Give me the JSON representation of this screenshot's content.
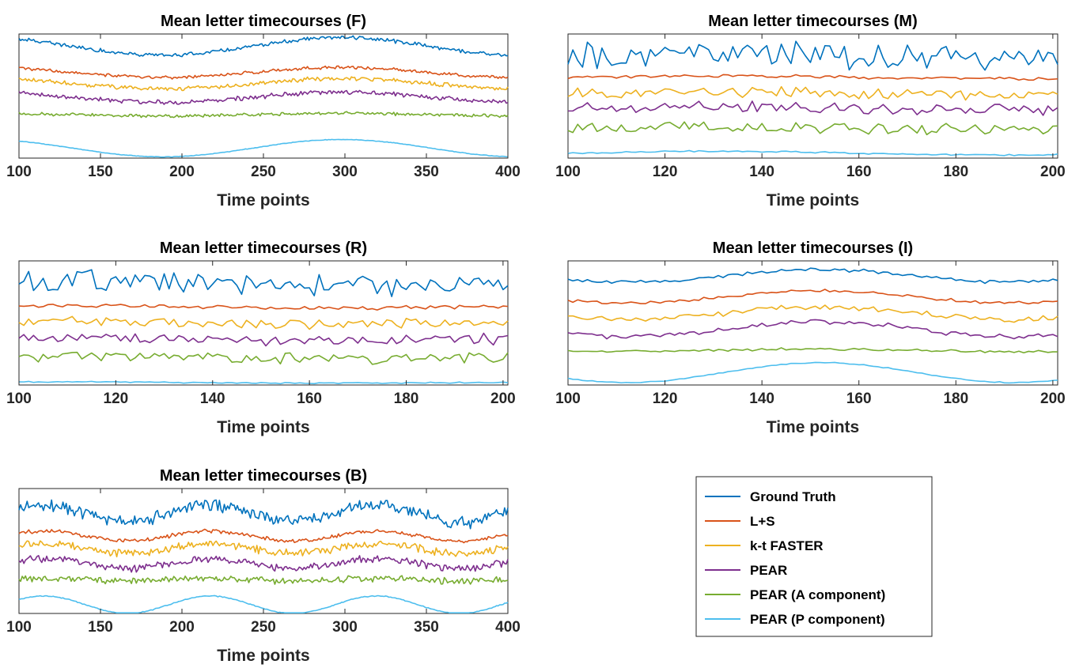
{
  "legend": {
    "entries": [
      "Ground Truth",
      "L+S",
      "k-t FASTER",
      "PEAR",
      "PEAR (A component)",
      "PEAR (P component)"
    ],
    "colors": [
      "#0072BD",
      "#D95319",
      "#EDB120",
      "#7E2F8E",
      "#77AC30",
      "#4DBEEE"
    ],
    "placement": "lower-right (standalone box)"
  },
  "chart_data": [
    {
      "type": "line",
      "title": "Mean letter timecourses (F)",
      "xlabel": "Time points",
      "ylabel": "",
      "xlim": [
        100,
        400
      ],
      "xticks": [
        100,
        150,
        200,
        250,
        300,
        350,
        400
      ],
      "ylim": [
        0,
        1
      ],
      "yticks_visible": false,
      "series": [
        {
          "name": "Ground Truth",
          "baseline": 0.9,
          "wave_amp": 0.07,
          "period": 220,
          "phase": 0.35,
          "noise": 0.012,
          "kind": "slow"
        },
        {
          "name": "L+S",
          "baseline": 0.69,
          "wave_amp": 0.04,
          "period": 220,
          "phase": 0.35,
          "noise": 0.01,
          "kind": "slow"
        },
        {
          "name": "k-t FASTER",
          "baseline": 0.6,
          "wave_amp": 0.04,
          "period": 220,
          "phase": 0.35,
          "noise": 0.014,
          "kind": "slow"
        },
        {
          "name": "PEAR",
          "baseline": 0.49,
          "wave_amp": 0.04,
          "period": 220,
          "phase": 0.35,
          "noise": 0.014,
          "kind": "slow"
        },
        {
          "name": "PEAR (A component)",
          "baseline": 0.35,
          "wave_amp": 0.01,
          "period": 220,
          "phase": 0.35,
          "noise": 0.01,
          "kind": "slow"
        },
        {
          "name": "PEAR (P component)",
          "baseline": 0.08,
          "wave_amp": 0.07,
          "period": 220,
          "phase": 0.35,
          "noise": 0.002,
          "kind": "slow"
        }
      ]
    },
    {
      "type": "line",
      "title": "Mean letter timecourses (M)",
      "xlabel": "Time points",
      "ylabel": "",
      "xlim": [
        100,
        201
      ],
      "xticks": [
        100,
        120,
        140,
        160,
        180,
        200
      ],
      "ylim": [
        0,
        1
      ],
      "yticks_visible": false,
      "series": [
        {
          "name": "Ground Truth",
          "baseline": 0.82,
          "wave_amp": 0.02,
          "period": 120,
          "phase": 0.0,
          "noise": 0.08,
          "kind": "noisy"
        },
        {
          "name": "L+S",
          "baseline": 0.65,
          "wave_amp": 0.01,
          "period": 120,
          "phase": 0.0,
          "noise": 0.012,
          "kind": "noisy"
        },
        {
          "name": "k-t FASTER",
          "baseline": 0.52,
          "wave_amp": 0.01,
          "period": 120,
          "phase": 0.0,
          "noise": 0.035,
          "kind": "noisy"
        },
        {
          "name": "PEAR",
          "baseline": 0.4,
          "wave_amp": 0.01,
          "period": 120,
          "phase": 0.0,
          "noise": 0.035,
          "kind": "noisy"
        },
        {
          "name": "PEAR (A component)",
          "baseline": 0.24,
          "wave_amp": 0.01,
          "period": 120,
          "phase": 0.0,
          "noise": 0.035,
          "kind": "noisy"
        },
        {
          "name": "PEAR (P component)",
          "baseline": 0.04,
          "wave_amp": 0.015,
          "period": 120,
          "phase": 0.0,
          "noise": 0.005,
          "kind": "noisy"
        }
      ]
    },
    {
      "type": "line",
      "title": "Mean letter timecourses (R)",
      "xlabel": "Time points",
      "ylabel": "",
      "xlim": [
        100,
        201
      ],
      "xticks": [
        100,
        120,
        140,
        160,
        180,
        200
      ],
      "ylim": [
        0,
        1
      ],
      "yticks_visible": false,
      "series": [
        {
          "name": "Ground Truth",
          "baseline": 0.82,
          "wave_amp": 0.02,
          "period": 120,
          "phase": 0.2,
          "noise": 0.08,
          "kind": "noisy"
        },
        {
          "name": "L+S",
          "baseline": 0.63,
          "wave_amp": 0.01,
          "period": 120,
          "phase": 0.2,
          "noise": 0.012,
          "kind": "noisy"
        },
        {
          "name": "k-t FASTER",
          "baseline": 0.5,
          "wave_amp": 0.01,
          "period": 120,
          "phase": 0.2,
          "noise": 0.035,
          "kind": "noisy"
        },
        {
          "name": "PEAR",
          "baseline": 0.37,
          "wave_amp": 0.01,
          "period": 120,
          "phase": 0.2,
          "noise": 0.035,
          "kind": "noisy"
        },
        {
          "name": "PEAR (A component)",
          "baseline": 0.22,
          "wave_amp": 0.01,
          "period": 120,
          "phase": 0.2,
          "noise": 0.035,
          "kind": "noisy"
        },
        {
          "name": "PEAR (P component)",
          "baseline": 0.02,
          "wave_amp": 0.005,
          "period": 120,
          "phase": 0.2,
          "noise": 0.004,
          "kind": "noisy"
        }
      ]
    },
    {
      "type": "line",
      "title": "Mean letter timecourses (I)",
      "xlabel": "Time points",
      "ylabel": "",
      "xlim": [
        100,
        201
      ],
      "xticks": [
        100,
        120,
        140,
        160,
        180,
        200
      ],
      "ylim": [
        0,
        1
      ],
      "yticks_visible": false,
      "series": [
        {
          "name": "Ground Truth",
          "baseline": 0.88,
          "wave_amp": 0.05,
          "period": 80,
          "phase": 0.6,
          "noise": 0.012,
          "kind": "slow"
        },
        {
          "name": "L+S",
          "baseline": 0.71,
          "wave_amp": 0.05,
          "period": 80,
          "phase": 0.6,
          "noise": 0.01,
          "kind": "slow"
        },
        {
          "name": "k-t FASTER",
          "baseline": 0.58,
          "wave_amp": 0.05,
          "period": 80,
          "phase": 0.6,
          "noise": 0.018,
          "kind": "slow"
        },
        {
          "name": "PEAR",
          "baseline": 0.45,
          "wave_amp": 0.06,
          "period": 80,
          "phase": 0.6,
          "noise": 0.015,
          "kind": "slow"
        },
        {
          "name": "PEAR (A component)",
          "baseline": 0.28,
          "wave_amp": 0.01,
          "period": 80,
          "phase": 0.6,
          "noise": 0.008,
          "kind": "slow"
        },
        {
          "name": "PEAR (P component)",
          "baseline": 0.1,
          "wave_amp": 0.08,
          "period": 80,
          "phase": 0.6,
          "noise": 0.003,
          "kind": "slow"
        }
      ]
    },
    {
      "type": "line",
      "title": "Mean letter timecourses (B)",
      "xlabel": "Time points",
      "ylabel": "",
      "xlim": [
        100,
        400
      ],
      "xticks": [
        100,
        150,
        200,
        250,
        300,
        350,
        400
      ],
      "ylim": [
        0,
        1
      ],
      "yticks_visible": false,
      "series": [
        {
          "name": "Ground Truth",
          "baseline": 0.8,
          "wave_amp": 0.07,
          "period": 102,
          "phase": 0.1,
          "noise": 0.04,
          "kind": "noisy"
        },
        {
          "name": "L+S",
          "baseline": 0.62,
          "wave_amp": 0.04,
          "period": 102,
          "phase": 0.1,
          "noise": 0.012,
          "kind": "noisy"
        },
        {
          "name": "k-t FASTER",
          "baseline": 0.52,
          "wave_amp": 0.04,
          "period": 102,
          "phase": 0.1,
          "noise": 0.025,
          "kind": "noisy"
        },
        {
          "name": "PEAR",
          "baseline": 0.4,
          "wave_amp": 0.04,
          "period": 102,
          "phase": 0.1,
          "noise": 0.025,
          "kind": "noisy"
        },
        {
          "name": "PEAR (A component)",
          "baseline": 0.27,
          "wave_amp": 0.01,
          "period": 102,
          "phase": 0.1,
          "noise": 0.02,
          "kind": "noisy"
        },
        {
          "name": "PEAR (P component)",
          "baseline": 0.07,
          "wave_amp": 0.07,
          "period": 102,
          "phase": 0.1,
          "noise": 0.003,
          "kind": "noisy"
        }
      ]
    }
  ]
}
